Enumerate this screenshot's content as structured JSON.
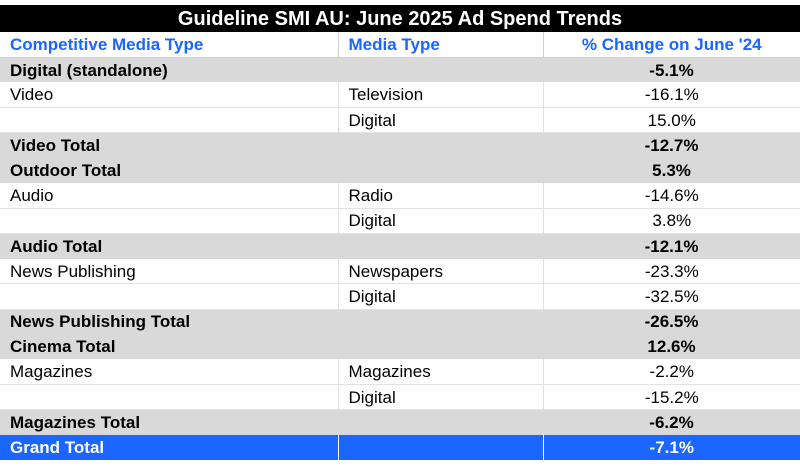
{
  "table": {
    "title": "Guideline SMI AU: June 2025 Ad Spend Trends",
    "headers": {
      "competitive_media_type": "Competitive Media Type",
      "media_type": "Media Type",
      "change": "% Change on June '24"
    },
    "rows": [
      {
        "competitive": "Digital (standalone)",
        "media": "",
        "change": "-5.1%"
      },
      {
        "competitive": "Video",
        "media": "Television",
        "change": "-16.1%"
      },
      {
        "competitive": "",
        "media": "Digital",
        "change": "15.0%"
      },
      {
        "competitive": "Video Total",
        "media": "",
        "change": "-12.7%"
      },
      {
        "competitive": "Outdoor Total",
        "media": "",
        "change": "5.3%"
      },
      {
        "competitive": "Audio",
        "media": "Radio",
        "change": "-14.6%"
      },
      {
        "competitive": "",
        "media": "Digital",
        "change": "3.8%"
      },
      {
        "competitive": "Audio Total",
        "media": "",
        "change": "-12.1%"
      },
      {
        "competitive": "News Publishing",
        "media": "Newspapers",
        "change": "-23.3%"
      },
      {
        "competitive": "",
        "media": "Digital",
        "change": "-32.5%"
      },
      {
        "competitive": "News Publishing Total",
        "media": "",
        "change": "-26.5%"
      },
      {
        "competitive": "Cinema Total",
        "media": "",
        "change": "12.6%"
      },
      {
        "competitive": "Magazines",
        "media": "Magazines",
        "change": "-2.2%"
      },
      {
        "competitive": "",
        "media": "Digital",
        "change": "-15.2%"
      },
      {
        "competitive": "Magazines Total",
        "media": "",
        "change": "-6.2%"
      }
    ],
    "grand_total": {
      "competitive": "Grand Total",
      "media": "",
      "change": "-7.1%"
    }
  },
  "colors": {
    "title_bg": "#000000",
    "header_text": "#1a66ff",
    "total_row_bg": "#d9d9d9",
    "grand_total_bg": "#1a66ff"
  }
}
